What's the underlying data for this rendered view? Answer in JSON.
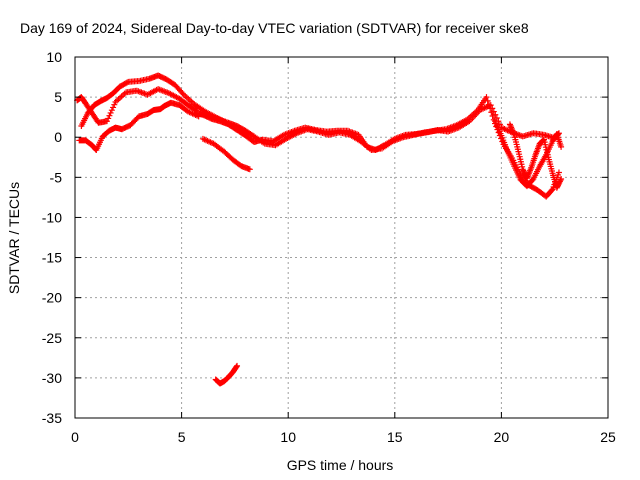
{
  "chart_data": {
    "type": "scatter",
    "title": "Day 169 of 2024, Sidereal Day-to-day VTEC variation (SDTVAR) for receiver ske8",
    "xlabel": "GPS time / hours",
    "ylabel": "SDTVAR / TECUs",
    "xlim": [
      0,
      25
    ],
    "ylim": [
      -35,
      10
    ],
    "xticks": [
      0,
      5,
      10,
      15,
      20,
      25
    ],
    "yticks": [
      10,
      5,
      0,
      -5,
      -10,
      -15,
      -20,
      -25,
      -30,
      -35
    ],
    "grid": true,
    "legend": "none",
    "marker": "+",
    "series_color": "#ff0000",
    "series": [
      {
        "name": "track-1",
        "x": [
          0.1,
          0.3,
          0.5,
          0.8,
          1.1,
          1.5,
          1.9,
          2.4,
          2.9,
          3.4,
          3.9,
          4.4,
          4.9,
          5.3,
          5.7
        ],
        "y": [
          4.6,
          5.0,
          4.2,
          3.0,
          1.8,
          2.0,
          4.4,
          5.6,
          5.8,
          5.3,
          6.0,
          5.5,
          4.8,
          4.0,
          3.3
        ]
      },
      {
        "name": "track-2",
        "x": [
          0.3,
          0.6,
          0.9,
          1.2,
          1.5,
          1.8,
          2.1,
          2.5,
          3.0,
          3.5,
          3.9,
          4.3,
          4.7,
          5.1,
          5.6,
          6.1,
          6.6,
          7.1,
          7.6,
          8.1
        ],
        "y": [
          1.4,
          3.0,
          4.0,
          4.5,
          4.9,
          5.5,
          6.3,
          6.9,
          7.0,
          7.3,
          7.7,
          7.2,
          6.5,
          5.3,
          4.1,
          3.2,
          2.5,
          1.8,
          1.0,
          0.3
        ]
      },
      {
        "name": "track-3",
        "x": [
          0.2,
          0.5,
          0.8,
          1.0,
          1.3,
          1.6,
          1.9,
          2.2,
          2.6,
          3.0,
          3.4,
          3.7,
          4.0,
          4.2,
          4.5,
          4.9,
          5.3,
          5.8
        ],
        "y": [
          -0.4,
          -0.4,
          -1.0,
          -1.6,
          0.1,
          0.8,
          1.2,
          1.0,
          1.5,
          2.6,
          2.9,
          3.4,
          3.5,
          3.9,
          4.3,
          4.0,
          3.2,
          2.6
        ]
      },
      {
        "name": "track-4",
        "x": [
          5.6,
          6.0,
          6.4,
          6.8,
          7.2,
          7.6,
          8.0,
          8.4,
          8.8,
          9.3,
          9.8,
          10.3,
          10.8,
          11.3,
          11.8,
          12.3,
          12.8,
          13.3,
          13.7,
          14.1,
          14.5,
          15.0,
          15.5,
          16.0,
          16.5,
          17.0,
          17.5,
          18.0,
          18.5,
          19.0,
          19.5,
          20.0,
          20.5,
          21.0,
          21.5,
          22.0,
          22.5,
          22.7
        ],
        "y": [
          3.0,
          2.8,
          2.3,
          2.0,
          1.6,
          0.9,
          0.2,
          -0.6,
          -0.3,
          -0.5,
          0.3,
          0.8,
          1.2,
          0.9,
          0.7,
          0.8,
          0.8,
          0.3,
          -1.2,
          -1.6,
          -1.0,
          -0.2,
          0.3,
          0.4,
          0.6,
          0.9,
          0.7,
          1.2,
          2.0,
          3.4,
          4.0,
          1.2,
          0.6,
          0.1,
          0.5,
          0.3,
          -0.1,
          0.5
        ]
      },
      {
        "name": "track-5",
        "x": [
          5.7,
          6.2,
          6.7,
          7.2,
          7.6,
          8.0,
          8.4,
          8.9,
          9.4,
          9.9,
          10.4,
          10.9,
          11.4,
          11.9,
          12.4,
          12.9,
          13.4,
          13.9,
          14.4,
          14.9,
          15.4,
          15.9,
          16.4,
          16.9,
          17.4,
          17.9,
          18.4,
          18.9,
          19.3,
          19.7,
          20.1,
          20.5,
          20.9,
          21.3,
          21.7,
          22.1,
          22.4,
          22.7
        ],
        "y": [
          3.0,
          2.7,
          2.3,
          1.8,
          1.4,
          0.8,
          0.1,
          -0.8,
          -1.0,
          -0.2,
          0.5,
          1.0,
          0.7,
          0.3,
          0.6,
          0.3,
          -0.5,
          -1.6,
          -1.4,
          -0.5,
          0.0,
          0.3,
          0.6,
          0.8,
          1.0,
          1.5,
          2.2,
          3.4,
          5.0,
          1.7,
          -0.9,
          -2.6,
          -4.6,
          -6.0,
          -6.6,
          -7.4,
          -6.5,
          -4.4
        ]
      },
      {
        "name": "track-6",
        "x": [
          6.0,
          6.5,
          7.0,
          7.4,
          7.8,
          8.2
        ],
        "y": [
          -0.2,
          -0.8,
          -1.8,
          -2.8,
          -3.6,
          -4.0
        ]
      },
      {
        "name": "track-7",
        "x": [
          19.7,
          20.0,
          20.3,
          20.6,
          20.9,
          21.2,
          21.5,
          21.8,
          22.1,
          22.4,
          22.6,
          22.8
        ],
        "y": [
          2.0,
          0.2,
          -1.8,
          -3.6,
          -5.3,
          -6.1,
          -5.2,
          -3.6,
          -2.2,
          -0.5,
          0.4,
          -1.2
        ]
      },
      {
        "name": "track-8",
        "x": [
          20.4,
          20.6,
          20.8,
          21.0,
          21.2,
          21.4,
          21.6,
          21.8,
          22.0,
          22.2,
          22.4,
          22.6,
          22.8
        ],
        "y": [
          1.6,
          0.3,
          -1.8,
          -4.0,
          -5.1,
          -3.8,
          -2.2,
          -0.8,
          -0.3,
          -2.5,
          -4.5,
          -6.3,
          -5.2
        ]
      },
      {
        "name": "track-9",
        "x": [
          6.6,
          6.8,
          7.0,
          7.2,
          7.4,
          7.6
        ],
        "y": [
          -30.2,
          -30.7,
          -30.4,
          -29.9,
          -29.3,
          -28.5
        ]
      }
    ]
  }
}
